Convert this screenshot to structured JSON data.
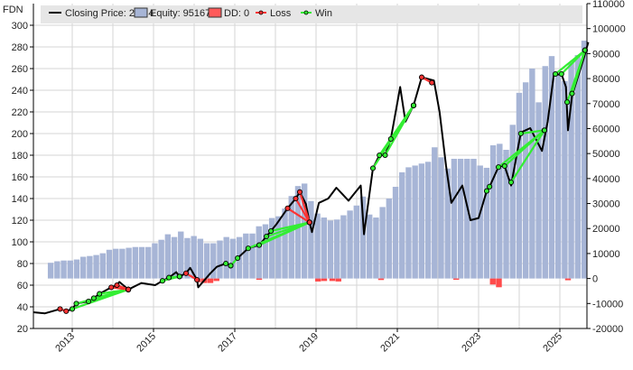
{
  "chart_data": {
    "type": "line",
    "title": "FDN",
    "legend": {
      "closing_price": "Closing Price: 284.4",
      "equity": "Equity: 95167",
      "dd": "DD: 0",
      "loss": "Loss",
      "win": "Win",
      "placement": "top"
    },
    "colors": {
      "price": "#000000",
      "equity": "#a7b5d6",
      "dd": "#ff4a4a",
      "loss": "#ff3333",
      "win": "#33ee33",
      "grid": "#d6d6d6",
      "legend_bg": "#e6e6e6"
    },
    "left_axis": {
      "ylim": [
        20,
        320
      ],
      "ticks": [
        20,
        40,
        60,
        80,
        100,
        120,
        140,
        160,
        180,
        200,
        220,
        240,
        260,
        280,
        300
      ]
    },
    "right_axis": {
      "ylim": [
        -20000,
        110000
      ],
      "ticks": [
        -20000,
        -10000,
        0,
        10000,
        20000,
        30000,
        40000,
        50000,
        60000,
        70000,
        80000,
        90000,
        100000,
        110000
      ]
    },
    "x_axis": {
      "xlim": [
        2012.04,
        2025.7
      ],
      "ticks": [
        "2013",
        "2015",
        "2017",
        "2019",
        "2021",
        "2023",
        "2025"
      ],
      "grid_years": [
        2013,
        2014,
        2015,
        2016,
        2017,
        2018,
        2019,
        2020,
        2021,
        2022,
        2023,
        2024,
        2025
      ]
    },
    "price": [
      [
        2012.04,
        35
      ],
      [
        2012.33,
        34
      ],
      [
        2012.7,
        38
      ],
      [
        2012.85,
        36
      ],
      [
        2013.0,
        38
      ],
      [
        2013.1,
        43
      ],
      [
        2013.4,
        45
      ],
      [
        2013.53,
        48
      ],
      [
        2013.67,
        52
      ],
      [
        2013.96,
        58
      ],
      [
        2014.1,
        60
      ],
      [
        2014.16,
        63
      ],
      [
        2014.38,
        56
      ],
      [
        2014.7,
        62
      ],
      [
        2015.04,
        60
      ],
      [
        2015.22,
        64
      ],
      [
        2015.38,
        67
      ],
      [
        2015.56,
        72
      ],
      [
        2015.64,
        68
      ],
      [
        2015.8,
        71
      ],
      [
        2015.9,
        76
      ],
      [
        2016.07,
        65
      ],
      [
        2016.1,
        58
      ],
      [
        2016.4,
        71
      ],
      [
        2016.56,
        77
      ],
      [
        2016.78,
        80
      ],
      [
        2016.9,
        78
      ],
      [
        2017.07,
        85
      ],
      [
        2017.33,
        94
      ],
      [
        2017.6,
        97
      ],
      [
        2017.78,
        105
      ],
      [
        2017.89,
        110
      ],
      [
        2018.02,
        116
      ],
      [
        2018.3,
        131
      ],
      [
        2018.5,
        140
      ],
      [
        2018.6,
        146
      ],
      [
        2018.75,
        135
      ],
      [
        2018.84,
        118
      ],
      [
        2018.9,
        109
      ],
      [
        2019.07,
        136
      ],
      [
        2019.3,
        140
      ],
      [
        2019.5,
        150
      ],
      [
        2019.8,
        138
      ],
      [
        2020.1,
        152
      ],
      [
        2020.18,
        107
      ],
      [
        2020.4,
        168
      ],
      [
        2020.56,
        180
      ],
      [
        2020.7,
        180
      ],
      [
        2020.84,
        195
      ],
      [
        2021.07,
        243
      ],
      [
        2021.2,
        211
      ],
      [
        2021.4,
        226
      ],
      [
        2021.6,
        252
      ],
      [
        2021.9,
        249
      ],
      [
        2022.04,
        220
      ],
      [
        2022.2,
        170
      ],
      [
        2022.33,
        136
      ],
      [
        2022.6,
        152
      ],
      [
        2022.8,
        120
      ],
      [
        2023.0,
        122
      ],
      [
        2023.2,
        147
      ],
      [
        2023.27,
        151
      ],
      [
        2023.5,
        170
      ],
      [
        2023.64,
        170
      ],
      [
        2023.8,
        152
      ],
      [
        2024.04,
        201
      ],
      [
        2024.27,
        205
      ],
      [
        2024.56,
        184
      ],
      [
        2024.7,
        211
      ],
      [
        2024.85,
        254
      ],
      [
        2025.04,
        255
      ],
      [
        2025.15,
        243
      ],
      [
        2025.2,
        203
      ],
      [
        2025.3,
        235
      ],
      [
        2025.6,
        271
      ],
      [
        2025.7,
        284.4
      ]
    ],
    "equity_start_year": 2012.47,
    "equity_end_year": 2025.6,
    "equity": [
      6300,
      6900,
      7200,
      7200,
      7600,
      8700,
      9000,
      9400,
      10100,
      11500,
      11900,
      11900,
      12300,
      12600,
      12600,
      12600,
      14100,
      15500,
      17700,
      16600,
      18800,
      16200,
      17000,
      15900,
      14100,
      14100,
      15200,
      16600,
      15900,
      16600,
      18000,
      18000,
      20900,
      21700,
      24200,
      24900,
      28000,
      33000,
      37000,
      38000,
      31000,
      26000,
      24400,
      23200,
      23600,
      25300,
      27200,
      29200,
      32800,
      25600,
      24400,
      28600,
      32000,
      36700,
      42500,
      44500,
      45200,
      46000,
      46700,
      52500,
      48500,
      44000,
      47900,
      47900,
      47900,
      47900,
      45200,
      44300,
      53300,
      53900,
      51500,
      61500,
      74300,
      78500,
      84000,
      70500,
      85000,
      89000,
      82000,
      79000,
      86400,
      89400,
      95167
    ],
    "drawdown": [
      [
        2016.1,
        -1500
      ],
      [
        2016.25,
        -1800
      ],
      [
        2016.4,
        -1800
      ],
      [
        2016.55,
        -1000
      ],
      [
        2017.6,
        -500
      ],
      [
        2019.05,
        -1200
      ],
      [
        2019.2,
        -1000
      ],
      [
        2019.4,
        -1000
      ],
      [
        2019.55,
        -1200
      ],
      [
        2020.6,
        -600
      ],
      [
        2022.45,
        -500
      ],
      [
        2023.35,
        -2400
      ],
      [
        2023.5,
        -3500
      ],
      [
        2025.2,
        -700
      ]
    ],
    "trades": [
      {
        "type": "loss",
        "entry": [
          2012.7,
          38
        ],
        "exit": [
          2012.85,
          36
        ]
      },
      {
        "type": "win",
        "entry": [
          2013.0,
          38
        ],
        "exit": [
          2014.38,
          56
        ]
      },
      {
        "type": "win",
        "entry": [
          2013.1,
          43
        ],
        "exit": [
          2014.38,
          56
        ]
      },
      {
        "type": "win",
        "entry": [
          2013.4,
          45
        ],
        "exit": [
          2014.38,
          56
        ]
      },
      {
        "type": "win",
        "entry": [
          2013.53,
          48
        ],
        "exit": [
          2014.38,
          56
        ]
      },
      {
        "type": "win",
        "entry": [
          2013.67,
          52
        ],
        "exit": [
          2014.38,
          56
        ]
      },
      {
        "type": "loss",
        "entry": [
          2013.96,
          58
        ],
        "exit": [
          2014.38,
          56
        ]
      },
      {
        "type": "loss",
        "entry": [
          2014.1,
          60
        ],
        "exit": [
          2014.38,
          56
        ]
      },
      {
        "type": "win",
        "entry": [
          2015.22,
          64
        ],
        "exit": [
          2015.64,
          68
        ]
      },
      {
        "type": "win",
        "entry": [
          2015.38,
          67
        ],
        "exit": [
          2015.64,
          68
        ]
      },
      {
        "type": "loss",
        "entry": [
          2015.8,
          71
        ],
        "exit": [
          2016.07,
          65
        ]
      },
      {
        "type": "win",
        "entry": [
          2016.78,
          80
        ],
        "exit": [
          2016.9,
          78
        ]
      },
      {
        "type": "win",
        "entry": [
          2016.9,
          78
        ],
        "exit": [
          2017.07,
          85
        ]
      },
      {
        "type": "win",
        "entry": [
          2017.33,
          94
        ],
        "exit": [
          2018.84,
          118
        ]
      },
      {
        "type": "win",
        "entry": [
          2017.6,
          97
        ],
        "exit": [
          2018.84,
          118
        ]
      },
      {
        "type": "win",
        "entry": [
          2017.78,
          105
        ],
        "exit": [
          2018.84,
          118
        ]
      },
      {
        "type": "win",
        "entry": [
          2017.89,
          110
        ],
        "exit": [
          2018.84,
          118
        ]
      },
      {
        "type": "loss",
        "entry": [
          2018.3,
          131
        ],
        "exit": [
          2018.84,
          118
        ]
      },
      {
        "type": "loss",
        "entry": [
          2018.5,
          140
        ],
        "exit": [
          2018.84,
          118
        ]
      },
      {
        "type": "loss",
        "entry": [
          2018.6,
          146
        ],
        "exit": [
          2018.84,
          118
        ]
      },
      {
        "type": "win",
        "entry": [
          2020.4,
          168
        ],
        "exit": [
          2021.4,
          226
        ]
      },
      {
        "type": "win",
        "entry": [
          2020.56,
          180
        ],
        "exit": [
          2021.4,
          226
        ]
      },
      {
        "type": "win",
        "entry": [
          2020.7,
          180
        ],
        "exit": [
          2021.4,
          226
        ]
      },
      {
        "type": "win",
        "entry": [
          2020.84,
          195
        ],
        "exit": [
          2021.4,
          226
        ]
      },
      {
        "type": "loss",
        "entry": [
          2021.6,
          252
        ],
        "exit": [
          2021.85,
          247
        ]
      },
      {
        "type": "win",
        "entry": [
          2023.2,
          147
        ],
        "exit": [
          2023.27,
          151
        ]
      },
      {
        "type": "win",
        "entry": [
          2023.49,
          169
        ],
        "exit": [
          2024.62,
          203
        ]
      },
      {
        "type": "win",
        "entry": [
          2023.64,
          170
        ],
        "exit": [
          2024.62,
          203
        ]
      },
      {
        "type": "win",
        "entry": [
          2023.8,
          155
        ],
        "exit": [
          2024.62,
          203
        ]
      },
      {
        "type": "win",
        "entry": [
          2024.04,
          200
        ],
        "exit": [
          2024.62,
          203
        ]
      },
      {
        "type": "win",
        "entry": [
          2024.89,
          255
        ],
        "exit": [
          2025.62,
          277
        ]
      },
      {
        "type": "win",
        "entry": [
          2025.04,
          255
        ],
        "exit": [
          2025.62,
          277
        ]
      },
      {
        "type": "win",
        "entry": [
          2025.18,
          229
        ],
        "exit": [
          2025.62,
          277
        ]
      },
      {
        "type": "win",
        "entry": [
          2025.3,
          237
        ],
        "exit": [
          2025.62,
          277
        ]
      }
    ]
  }
}
